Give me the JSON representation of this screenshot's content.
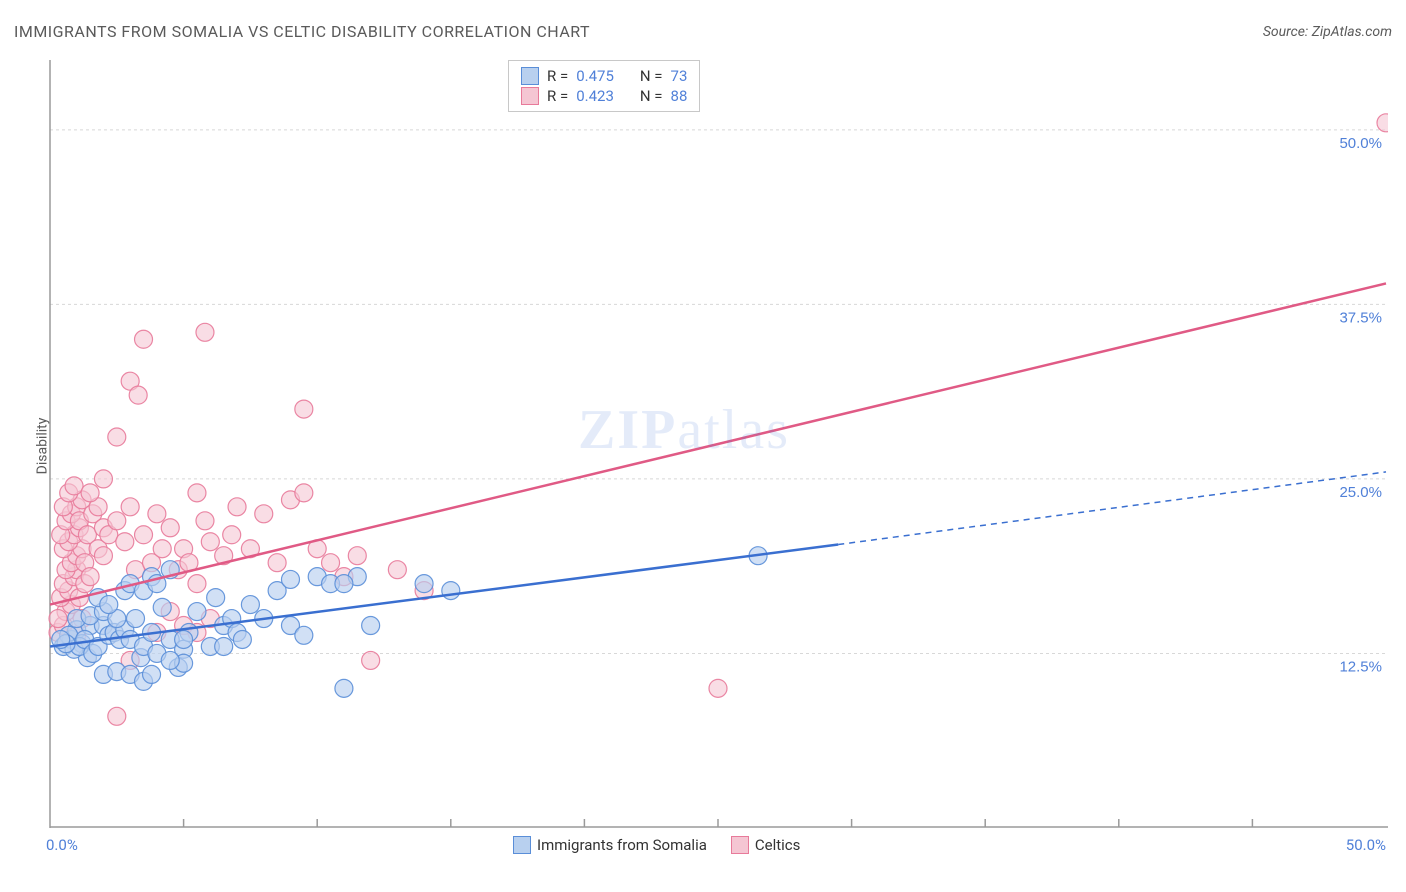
{
  "title": "IMMIGRANTS FROM SOMALIA VS CELTIC DISABILITY CORRELATION CHART",
  "source": "Source: ZipAtlas.com",
  "ylabel": "Disability",
  "watermark_zip": "ZIP",
  "watermark_atlas": "atlas",
  "chart": {
    "type": "scatter",
    "xlim": [
      0,
      50
    ],
    "ylim": [
      0,
      55
    ],
    "x_min_label": "0.0%",
    "x_max_label": "50.0%",
    "y_ticks": [
      12.5,
      25.0,
      37.5,
      50.0
    ],
    "y_tick_labels": [
      "12.5%",
      "25.0%",
      "37.5%",
      "50.0%"
    ],
    "x_tick_positions": [
      5,
      10,
      15,
      20,
      25,
      30,
      35,
      40,
      45
    ],
    "grid_color": "#d8d8d8",
    "axis_color": "#9a9a9a",
    "background_color": "#ffffff",
    "tick_label_color": "#5080d8",
    "series": [
      {
        "name": "Immigrants from Somalia",
        "marker_fill": "#b8d0ef",
        "marker_stroke": "#5a8ed8",
        "marker_opacity": 0.65,
        "marker_radius": 9,
        "line_color": "#3a6fd0",
        "line_width": 2.5,
        "r_value": "0.475",
        "n_value": "73",
        "trend_start": [
          0,
          13.0
        ],
        "trend_solid_end": [
          29.5,
          20.3
        ],
        "trend_dash_end": [
          50,
          25.5
        ],
        "points": [
          [
            0.5,
            13.0
          ],
          [
            0.8,
            13.5
          ],
          [
            1.0,
            14.2
          ],
          [
            1.2,
            13.2
          ],
          [
            1.4,
            12.2
          ],
          [
            1.5,
            14.5
          ],
          [
            0.7,
            13.8
          ],
          [
            0.9,
            12.8
          ],
          [
            1.1,
            13.0
          ],
          [
            1.3,
            13.5
          ],
          [
            1.6,
            12.5
          ],
          [
            1.8,
            13.0
          ],
          [
            2.0,
            14.5
          ],
          [
            2.2,
            13.8
          ],
          [
            2.4,
            14.0
          ],
          [
            2.0,
            11.0
          ],
          [
            2.5,
            11.2
          ],
          [
            0.6,
            13.2
          ],
          [
            0.4,
            13.5
          ],
          [
            2.6,
            13.5
          ],
          [
            2.8,
            14.2
          ],
          [
            3.0,
            13.5
          ],
          [
            3.2,
            15.0
          ],
          [
            3.4,
            12.2
          ],
          [
            3.5,
            13.0
          ],
          [
            3.8,
            14.0
          ],
          [
            4.0,
            12.5
          ],
          [
            4.2,
            15.8
          ],
          [
            4.5,
            13.5
          ],
          [
            4.8,
            11.5
          ],
          [
            5.0,
            12.8
          ],
          [
            5.2,
            14.0
          ],
          [
            5.5,
            15.5
          ],
          [
            5.0,
            11.8
          ],
          [
            4.5,
            12.0
          ],
          [
            3.0,
            11.0
          ],
          [
            3.5,
            10.5
          ],
          [
            6.0,
            13.0
          ],
          [
            6.2,
            16.5
          ],
          [
            6.5,
            14.5
          ],
          [
            3.8,
            11.0
          ],
          [
            6.8,
            15.0
          ],
          [
            7.0,
            14.0
          ],
          [
            7.2,
            13.5
          ],
          [
            7.5,
            16.0
          ],
          [
            8.0,
            15.0
          ],
          [
            8.5,
            17.0
          ],
          [
            9.0,
            14.5
          ],
          [
            9.5,
            13.8
          ],
          [
            9.0,
            17.8
          ],
          [
            10.0,
            18.0
          ],
          [
            10.5,
            17.5
          ],
          [
            11.5,
            18.0
          ],
          [
            11.0,
            17.5
          ],
          [
            11.0,
            10.0
          ],
          [
            12.0,
            14.5
          ],
          [
            14.0,
            17.5
          ],
          [
            15.0,
            17.0
          ],
          [
            26.5,
            19.5
          ],
          [
            1.0,
            15.0
          ],
          [
            1.5,
            15.2
          ],
          [
            2.0,
            15.5
          ],
          [
            2.5,
            15.0
          ],
          [
            1.8,
            16.5
          ],
          [
            2.2,
            16.0
          ],
          [
            2.8,
            17.0
          ],
          [
            3.0,
            17.5
          ],
          [
            3.5,
            17.0
          ],
          [
            3.8,
            18.0
          ],
          [
            4.0,
            17.5
          ],
          [
            4.5,
            18.5
          ],
          [
            6.5,
            13.0
          ],
          [
            5.0,
            13.5
          ]
        ]
      },
      {
        "name": "Celtics",
        "marker_fill": "#f5c6d3",
        "marker_stroke": "#e87a9a",
        "marker_opacity": 0.6,
        "marker_radius": 9,
        "line_color": "#e05a85",
        "line_width": 2.5,
        "r_value": "0.423",
        "n_value": "88",
        "trend_start": [
          0,
          16.0
        ],
        "trend_solid_end": [
          50,
          39.0
        ],
        "trend_dash_end": null,
        "points": [
          [
            0.3,
            14.0
          ],
          [
            0.5,
            14.5
          ],
          [
            0.6,
            15.5
          ],
          [
            0.8,
            16.0
          ],
          [
            1.0,
            13.8
          ],
          [
            1.2,
            15.0
          ],
          [
            0.4,
            16.5
          ],
          [
            0.7,
            17.0
          ],
          [
            0.3,
            15.0
          ],
          [
            0.5,
            17.5
          ],
          [
            0.9,
            18.0
          ],
          [
            1.0,
            18.5
          ],
          [
            1.1,
            16.5
          ],
          [
            1.3,
            17.5
          ],
          [
            0.6,
            18.5
          ],
          [
            0.8,
            19.0
          ],
          [
            1.0,
            19.5
          ],
          [
            1.2,
            20.0
          ],
          [
            0.5,
            20.0
          ],
          [
            0.7,
            20.5
          ],
          [
            0.9,
            21.0
          ],
          [
            1.1,
            21.5
          ],
          [
            1.3,
            19.0
          ],
          [
            1.5,
            18.0
          ],
          [
            0.4,
            21.0
          ],
          [
            0.6,
            22.0
          ],
          [
            0.8,
            22.5
          ],
          [
            1.0,
            23.0
          ],
          [
            1.2,
            23.5
          ],
          [
            0.5,
            23.0
          ],
          [
            0.7,
            24.0
          ],
          [
            0.9,
            24.5
          ],
          [
            1.1,
            22.0
          ],
          [
            1.4,
            21.0
          ],
          [
            2.5,
            8.0
          ],
          [
            1.6,
            22.5
          ],
          [
            1.8,
            23.0
          ],
          [
            2.0,
            21.5
          ],
          [
            1.5,
            24.0
          ],
          [
            1.8,
            20.0
          ],
          [
            2.0,
            19.5
          ],
          [
            2.2,
            21.0
          ],
          [
            2.5,
            22.0
          ],
          [
            2.8,
            20.5
          ],
          [
            3.0,
            23.0
          ],
          [
            3.2,
            18.5
          ],
          [
            3.5,
            21.0
          ],
          [
            3.0,
            32.0
          ],
          [
            3.3,
            31.0
          ],
          [
            2.5,
            28.0
          ],
          [
            3.5,
            35.0
          ],
          [
            5.8,
            35.5
          ],
          [
            9.5,
            30.0
          ],
          [
            3.8,
            19.0
          ],
          [
            4.0,
            22.5
          ],
          [
            4.2,
            20.0
          ],
          [
            4.5,
            21.5
          ],
          [
            5.5,
            24.0
          ],
          [
            4.8,
            18.5
          ],
          [
            5.0,
            20.0
          ],
          [
            5.2,
            19.0
          ],
          [
            5.5,
            17.5
          ],
          [
            5.8,
            22.0
          ],
          [
            6.0,
            20.5
          ],
          [
            6.5,
            19.5
          ],
          [
            5.0,
            14.5
          ],
          [
            5.5,
            14.0
          ],
          [
            6.0,
            15.0
          ],
          [
            6.8,
            21.0
          ],
          [
            7.5,
            20.0
          ],
          [
            7.0,
            23.0
          ],
          [
            8.0,
            22.5
          ],
          [
            8.5,
            19.0
          ],
          [
            9.0,
            23.5
          ],
          [
            9.5,
            24.0
          ],
          [
            10.0,
            20.0
          ],
          [
            10.5,
            19.0
          ],
          [
            11.0,
            18.0
          ],
          [
            11.5,
            19.5
          ],
          [
            12.0,
            12.0
          ],
          [
            13.0,
            18.5
          ],
          [
            14.0,
            17.0
          ],
          [
            25.0,
            10.0
          ],
          [
            50.0,
            50.5
          ],
          [
            3.0,
            12.0
          ],
          [
            4.0,
            14.0
          ],
          [
            4.5,
            15.5
          ],
          [
            2.0,
            25.0
          ]
        ]
      }
    ]
  },
  "legend_box": {
    "r_label": "R =",
    "n_label": "N ="
  },
  "bottom_legend": {
    "series1_label": "Immigrants from Somalia",
    "series2_label": "Celtics"
  }
}
